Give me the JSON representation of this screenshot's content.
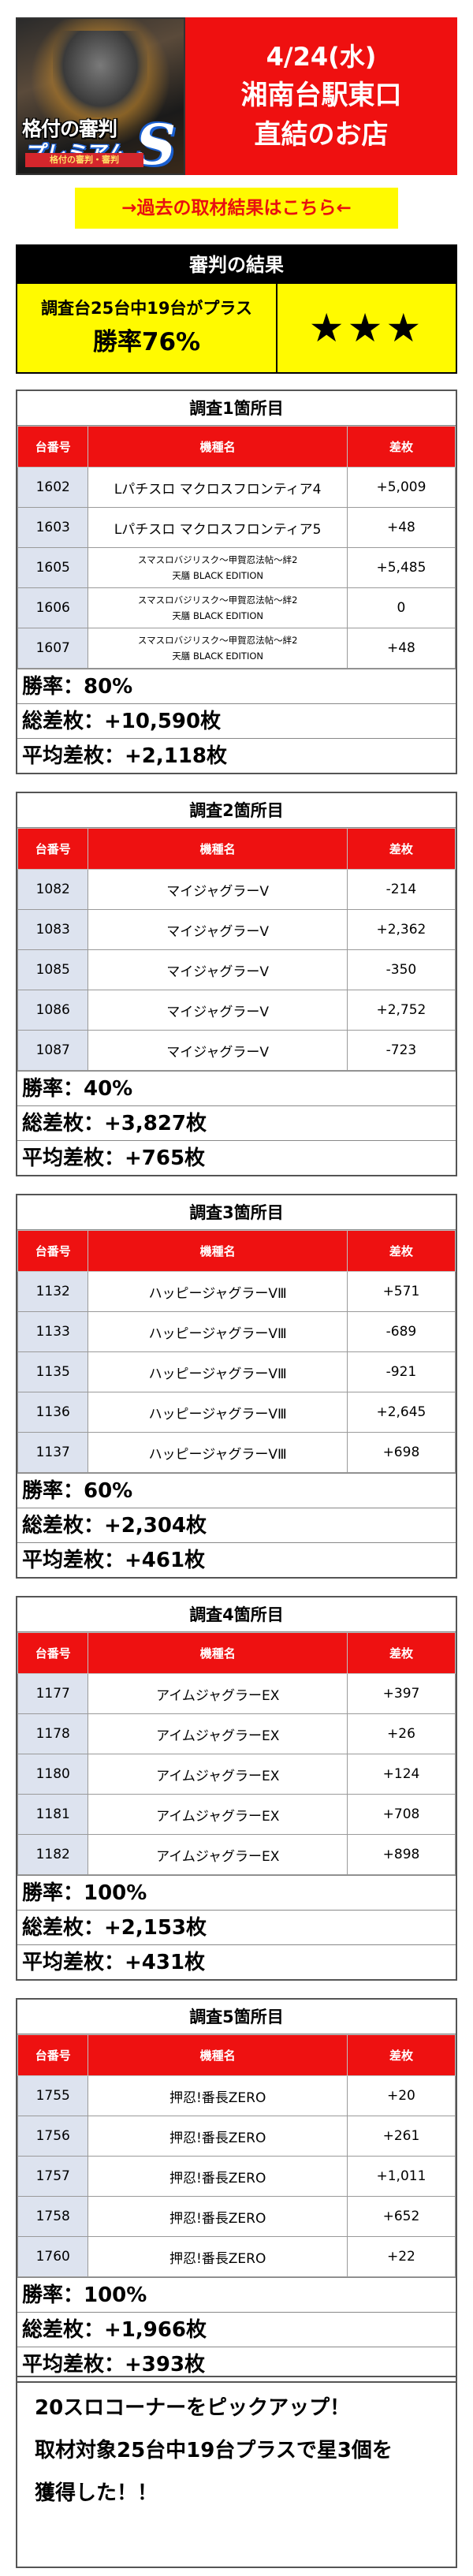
{
  "header": {
    "logo_line1": "格付の審判",
    "logo_line2": "プレミアム",
    "logo_s": "S",
    "logo_sub": "格付の審判・審判",
    "date": "4/24(水)",
    "store_line1": "湘南台駅東口",
    "store_line2": "直結のお店"
  },
  "past_link": "→過去の取材結果はこちら←",
  "verdict": {
    "title": "審判の結果",
    "sub": "調査台25台中19台がプラス",
    "rate": "勝率76%",
    "stars": "★★★"
  },
  "table_headers": {
    "num": "台番号",
    "name": "機種名",
    "val": "差枚"
  },
  "surveys": [
    {
      "title": "調査1箇所目",
      "rows": [
        {
          "num": "1602",
          "name": "Lパチスロ マクロスフロンティア4",
          "val": "+5,009"
        },
        {
          "num": "1603",
          "name": "Lパチスロ マクロスフロンティア5",
          "val": "+48"
        },
        {
          "num": "1605",
          "name": "スマスロバジリスク～甲賀忍法帖～絆2",
          "name2": "天膳 BLACK EDITION",
          "val": "+5,485"
        },
        {
          "num": "1606",
          "name": "スマスロバジリスク～甲賀忍法帖～絆2",
          "name2": "天膳 BLACK EDITION",
          "val": "0"
        },
        {
          "num": "1607",
          "name": "スマスロバジリスク～甲賀忍法帖～絆2",
          "name2": "天膳 BLACK EDITION",
          "val": "+48"
        }
      ],
      "win_rate": "勝率：80%",
      "total": "総差枚：+10,590枚",
      "average": "平均差枚：+2,118枚"
    },
    {
      "title": "調査2箇所目",
      "rows": [
        {
          "num": "1082",
          "name": "マイジャグラーV",
          "val": "-214"
        },
        {
          "num": "1083",
          "name": "マイジャグラーV",
          "val": "+2,362"
        },
        {
          "num": "1085",
          "name": "マイジャグラーV",
          "val": "-350"
        },
        {
          "num": "1086",
          "name": "マイジャグラーV",
          "val": "+2,752"
        },
        {
          "num": "1087",
          "name": "マイジャグラーV",
          "val": "-723"
        }
      ],
      "win_rate": "勝率：40%",
      "total": "総差枚：+3,827枚",
      "average": "平均差枚：+765枚"
    },
    {
      "title": "調査3箇所目",
      "rows": [
        {
          "num": "1132",
          "name": "ハッピージャグラーVⅢ",
          "val": "+571"
        },
        {
          "num": "1133",
          "name": "ハッピージャグラーVⅢ",
          "val": "-689"
        },
        {
          "num": "1135",
          "name": "ハッピージャグラーVⅢ",
          "val": "-921"
        },
        {
          "num": "1136",
          "name": "ハッピージャグラーVⅢ",
          "val": "+2,645"
        },
        {
          "num": "1137",
          "name": "ハッピージャグラーVⅢ",
          "val": "+698"
        }
      ],
      "win_rate": "勝率：60%",
      "total": "総差枚：+2,304枚",
      "average": "平均差枚：+461枚"
    },
    {
      "title": "調査4箇所目",
      "rows": [
        {
          "num": "1177",
          "name": "アイムジャグラーEX",
          "val": "+397"
        },
        {
          "num": "1178",
          "name": "アイムジャグラーEX",
          "val": "+26"
        },
        {
          "num": "1180",
          "name": "アイムジャグラーEX",
          "val": "+124"
        },
        {
          "num": "1181",
          "name": "アイムジャグラーEX",
          "val": "+708"
        },
        {
          "num": "1182",
          "name": "アイムジャグラーEX",
          "val": "+898"
        }
      ],
      "win_rate": "勝率：100%",
      "total": "総差枚：+2,153枚",
      "average": "平均差枚：+431枚"
    },
    {
      "title": "調査5箇所目",
      "rows": [
        {
          "num": "1755",
          "name": "押忍!番長ZERO",
          "val": "+20"
        },
        {
          "num": "1756",
          "name": "押忍!番長ZERO",
          "val": "+261"
        },
        {
          "num": "1757",
          "name": "押忍!番長ZERO",
          "val": "+1,011"
        },
        {
          "num": "1758",
          "name": "押忍!番長ZERO",
          "val": "+652"
        },
        {
          "num": "1760",
          "name": "押忍!番長ZERO",
          "val": "+22"
        }
      ],
      "win_rate": "勝率：100%",
      "total": "総差枚：+1,966枚",
      "average": "平均差枚：+393枚"
    }
  ],
  "footer": {
    "line1": "20スロコーナーをピックアップ！",
    "line2": "取材対象25台中19台プラスで星3個を",
    "line3": "獲得した！！"
  }
}
